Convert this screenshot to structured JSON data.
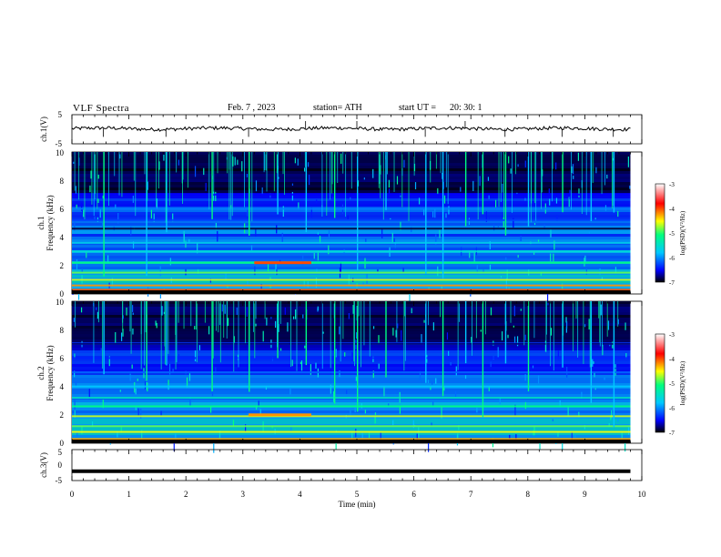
{
  "header": {
    "title": "VLF  Spectra",
    "date": "Feb. 7  , 2023",
    "station": "station= ATH",
    "start_label": "start  UT  =",
    "start_time": "20: 30: 1"
  },
  "colors": {
    "waveform": "#000000",
    "spectrogram_background": "#00003c",
    "colorbar_stops": [
      "#000000",
      "#0000ff",
      "#00c8ff",
      "#00ff80",
      "#ffff00",
      "#ff0000",
      "#ffffff"
    ]
  },
  "chart_data": [
    {
      "type": "line",
      "name": "ch1-waveform",
      "ylabel": "ch.1(V)",
      "ylim": [
        -5,
        5
      ],
      "yticks": [
        "5",
        "-5"
      ],
      "x_range_min": [
        0,
        10
      ],
      "data_extent_min": [
        0,
        9.8
      ],
      "description_values": {
        "mean_level_V": 0.2,
        "noise_amplitude_V": 0.6
      }
    },
    {
      "type": "heatmap",
      "name": "ch1-spectrogram",
      "ylabel_top": "ch.1",
      "ylabel": "Frequency  (kHz)",
      "xlim": [
        0,
        10
      ],
      "ylim": [
        0,
        10
      ],
      "yticks": [
        "0",
        "2",
        "4",
        "6",
        "8",
        "10"
      ],
      "data_extent_min": [
        0,
        9.8
      ],
      "colorbar": {
        "label": "log(PSD)(V²/Hz)",
        "ticks": [
          "-3",
          "-4",
          "-5",
          "-6",
          "-7"
        ],
        "range": [
          -7,
          -3
        ]
      },
      "bands_khz": [
        {
          "f": 0.3,
          "level": -4.0
        },
        {
          "f": 0.6,
          "level": -4.2
        },
        {
          "f": 1.0,
          "level": -4.6
        },
        {
          "f": 1.5,
          "level": -4.8
        },
        {
          "f": 2.2,
          "level": -5.0
        },
        {
          "f": 3.0,
          "level": -5.4
        },
        {
          "f": 3.6,
          "level": -5.5
        },
        {
          "f": 4.6,
          "level": -6.8
        },
        {
          "f": 5.2,
          "level": -6.0
        },
        {
          "f": 6.0,
          "level": -5.8
        },
        {
          "f": 7.0,
          "level": -6.2
        }
      ],
      "hot_band": {
        "f_khz": 2.2,
        "t_min": [
          3.2,
          4.2
        ],
        "level": -4.0
      },
      "spheric_times_min": [
        0.55,
        1.3,
        1.65,
        2.45,
        3.1,
        3.6,
        4.1,
        4.6,
        5.0,
        5.5,
        6.2,
        6.5,
        6.9,
        7.2,
        7.6,
        8.0,
        8.6,
        9.1,
        9.5
      ]
    },
    {
      "type": "heatmap",
      "name": "ch2-spectrogram",
      "ylabel_top": "ch.2",
      "ylabel": "Frequency  (kHz)",
      "xlim": [
        0,
        10
      ],
      "ylim": [
        0,
        10
      ],
      "yticks": [
        "0",
        "2",
        "4",
        "6",
        "8",
        "10"
      ],
      "data_extent_min": [
        0,
        9.8
      ],
      "colorbar": {
        "label": "log(PSD)(V²/Hz)",
        "ticks": [
          "-3",
          "-4",
          "-5",
          "-6",
          "-7"
        ],
        "range": [
          -7,
          -3
        ]
      },
      "bands_khz": [
        {
          "f": 0.3,
          "level": -4.2
        },
        {
          "f": 0.8,
          "level": -4.5
        },
        {
          "f": 1.2,
          "level": -4.8
        },
        {
          "f": 1.9,
          "level": -4.6
        },
        {
          "f": 2.6,
          "level": -5.0
        },
        {
          "f": 3.2,
          "level": -5.3
        },
        {
          "f": 4.0,
          "level": -5.6
        },
        {
          "f": 5.0,
          "level": -5.9
        },
        {
          "f": 6.0,
          "level": -6.1
        },
        {
          "f": 7.0,
          "level": -6.6
        }
      ],
      "hot_band": {
        "f_khz": 2.0,
        "t_min": [
          3.1,
          4.2
        ],
        "level": -4.2
      },
      "spheric_times_min": [
        0.55,
        1.3,
        1.65,
        2.45,
        3.1,
        3.6,
        4.1,
        4.6,
        5.0,
        5.5,
        6.2,
        6.5,
        6.9,
        7.2,
        7.6,
        8.0,
        8.6,
        9.1,
        9.5
      ]
    },
    {
      "type": "line",
      "name": "ch3-waveform",
      "ylabel": "ch.3(V)",
      "ylim": [
        -5,
        5
      ],
      "yticks": [
        "5",
        "0",
        "-5"
      ],
      "constant_level_V": -2,
      "data_extent_min": [
        0,
        9.8
      ]
    }
  ],
  "x_axis": {
    "label": "Time  (min)",
    "ticks": [
      "0",
      "1",
      "2",
      "3",
      "4",
      "5",
      "6",
      "7",
      "8",
      "9",
      "10"
    ]
  }
}
